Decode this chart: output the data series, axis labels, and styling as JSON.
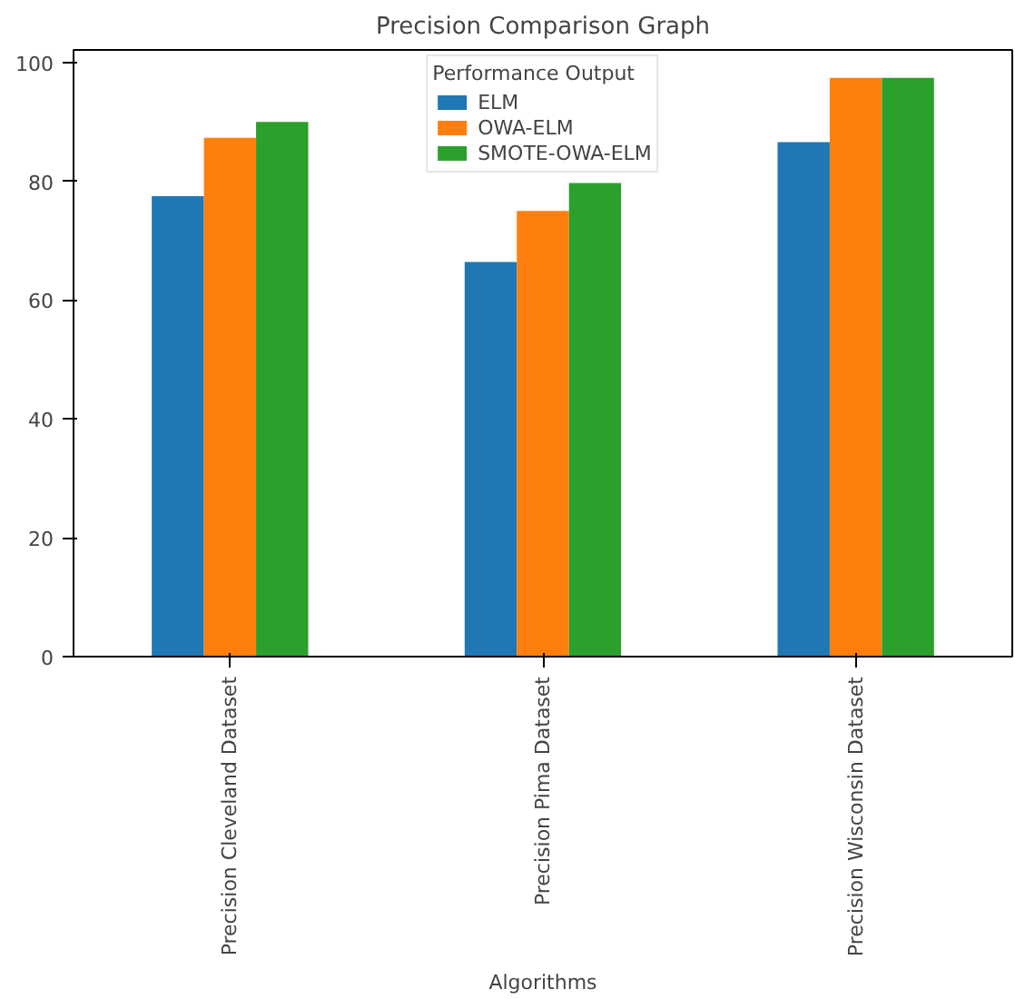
{
  "chart_data": {
    "type": "bar",
    "title": "Precision Comparison Graph",
    "xlabel": "Algorithms",
    "legend_title": "Performance Output",
    "categories": [
      "Precision Cleveland Dataset",
      "Precision Pima Dataset",
      "Precision Wisconsin Dataset"
    ],
    "series": [
      {
        "name": "ELM",
        "color": "#1f77b4",
        "values": [
          77.5,
          66.4,
          86.6
        ]
      },
      {
        "name": "OWA-ELM",
        "color": "#ff7f0e",
        "values": [
          87.3,
          75.0,
          97.4
        ]
      },
      {
        "name": "SMOTE-OWA-ELM",
        "color": "#2ca02c",
        "values": [
          90.0,
          79.7,
          97.4
        ]
      }
    ],
    "ylim": [
      0,
      102.1
    ],
    "yticks": [
      0,
      20,
      40,
      60,
      80,
      100
    ],
    "grid": false,
    "legend": "top"
  }
}
